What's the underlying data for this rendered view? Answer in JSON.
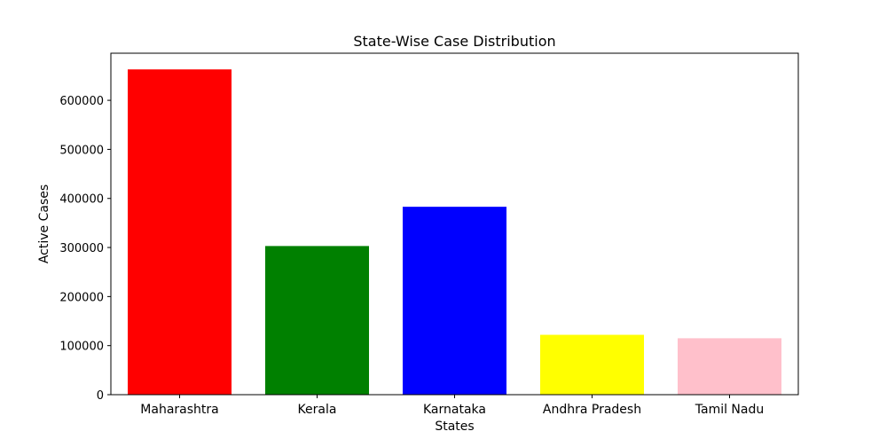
{
  "chart_data": {
    "type": "bar",
    "title": "State-Wise Case Distribution",
    "xlabel": "States",
    "ylabel": "Active Cases",
    "categories": [
      "Maharashtra",
      "Kerala",
      "Karnataka",
      "Andhra Pradesh",
      "Tamil Nadu"
    ],
    "values": [
      663000,
      303000,
      383000,
      122000,
      115000
    ],
    "colors": [
      "#ff0000",
      "#008000",
      "#0000ff",
      "#ffff00",
      "#ffc0cb"
    ],
    "ylim": [
      0,
      696000
    ],
    "yticks": [
      0,
      100000,
      200000,
      300000,
      400000,
      500000,
      600000
    ],
    "ytick_labels": [
      "0",
      "100000",
      "200000",
      "300000",
      "400000",
      "500000",
      "600000"
    ],
    "grid": false,
    "legend": false
  }
}
